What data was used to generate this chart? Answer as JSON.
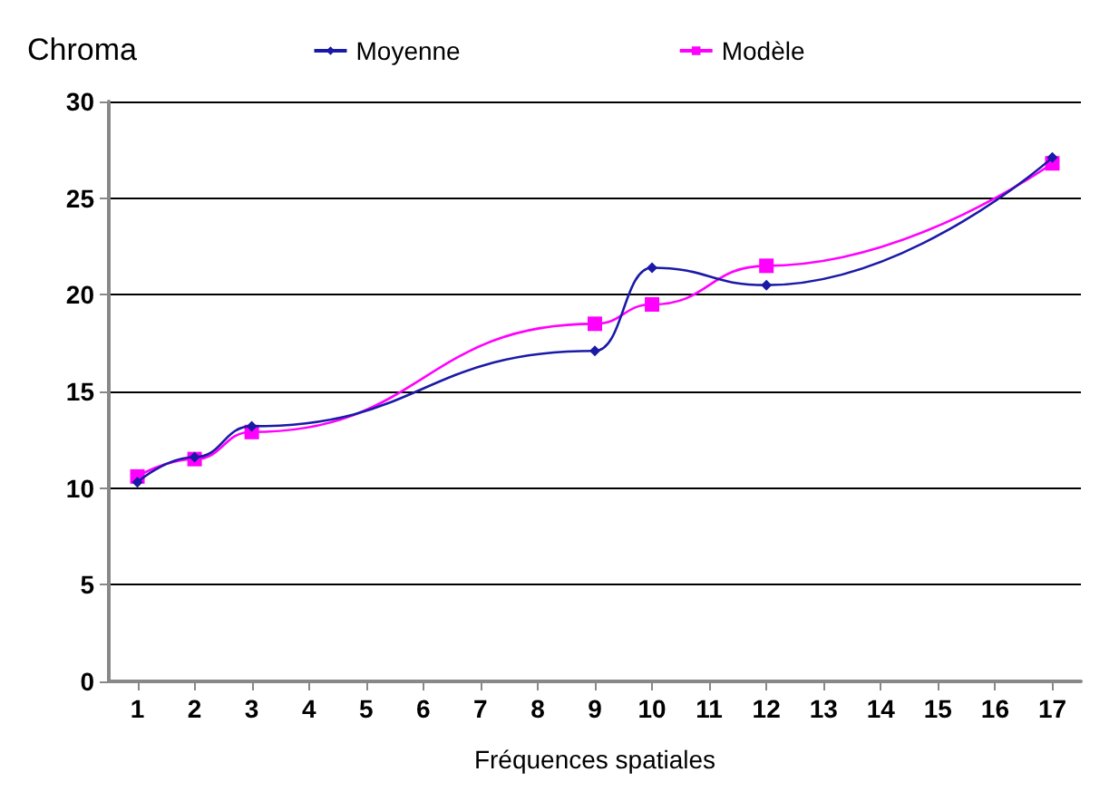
{
  "chart_data": {
    "type": "line",
    "ylabel": "Chroma",
    "xlabel": "Fréquences spatiales",
    "xlim": [
      0.5,
      17.5
    ],
    "xticks": [
      1,
      2,
      3,
      4,
      5,
      6,
      7,
      8,
      9,
      10,
      11,
      12,
      13,
      14,
      15,
      16,
      17
    ],
    "ylim": [
      0,
      30
    ],
    "yticks": [
      0,
      5,
      10,
      15,
      20,
      25,
      30
    ],
    "grid": "y",
    "legend": "top",
    "series": [
      {
        "name": "Moyenne",
        "color": "#1a1aa6",
        "marker": "diamond",
        "x": [
          1,
          2,
          3,
          9,
          10,
          12,
          17
        ],
        "values": [
          10.3,
          11.6,
          13.2,
          17.1,
          21.4,
          20.5,
          27.1
        ]
      },
      {
        "name": "Modèle",
        "color": "#ff00ff",
        "marker": "square",
        "x": [
          1,
          2,
          3,
          9,
          10,
          12,
          17
        ],
        "values": [
          10.6,
          11.5,
          12.9,
          18.5,
          19.5,
          21.5,
          26.8
        ]
      }
    ]
  }
}
